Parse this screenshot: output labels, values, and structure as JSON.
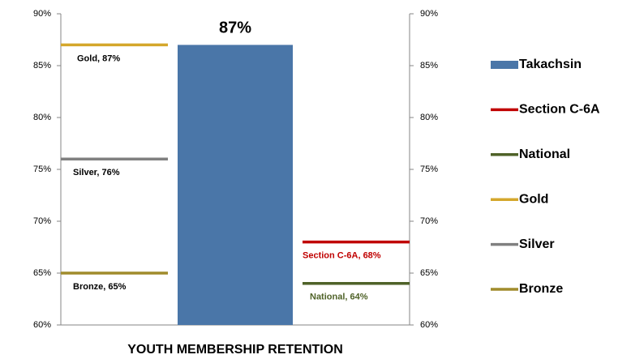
{
  "chart_data": {
    "type": "bar",
    "x_label": "YOUTH MEMBERSHIP RETENTION",
    "series": [
      {
        "name": "Takachsin",
        "style": "bar",
        "color": "#4a76a8",
        "values": [
          87
        ],
        "value_labels": [
          "87%"
        ]
      },
      {
        "name": "Section C-6A",
        "style": "line",
        "color": "#c00000",
        "values": [
          68
        ],
        "value_labels": [
          "Section C-6A, 68%"
        ]
      },
      {
        "name": "National",
        "style": "line",
        "color": "#4f6228",
        "values": [
          64
        ],
        "value_labels": [
          "National, 64%"
        ]
      },
      {
        "name": "Gold",
        "style": "line",
        "color": "#d4a72c",
        "values": [
          87
        ],
        "value_labels": [
          "Gold, 87%"
        ]
      },
      {
        "name": "Silver",
        "style": "line",
        "color": "#808080",
        "values": [
          76
        ],
        "value_labels": [
          "Silver, 76%"
        ]
      },
      {
        "name": "Bronze",
        "style": "line",
        "color": "#a08c2c",
        "values": [
          65
        ],
        "value_labels": [
          "Bronze, 65%"
        ]
      }
    ],
    "ylim": [
      60,
      90
    ],
    "yticks": [
      {
        "value": 60,
        "label": "60%"
      },
      {
        "value": 65,
        "label": "65%"
      },
      {
        "value": 70,
        "label": "70%"
      },
      {
        "value": 75,
        "label": "75%"
      },
      {
        "value": 80,
        "label": "80%"
      },
      {
        "value": 85,
        "label": "85%"
      },
      {
        "value": 90,
        "label": "90%"
      }
    ],
    "y2lim": [
      60,
      90
    ],
    "y2ticks": [
      {
        "value": 60,
        "label": "60%"
      },
      {
        "value": 65,
        "label": "65%"
      },
      {
        "value": 70,
        "label": "70%"
      },
      {
        "value": 75,
        "label": "75%"
      },
      {
        "value": 80,
        "label": "80%"
      },
      {
        "value": 85,
        "label": "85%"
      },
      {
        "value": 90,
        "label": "90%"
      }
    ],
    "grid": false,
    "legend": "right"
  }
}
